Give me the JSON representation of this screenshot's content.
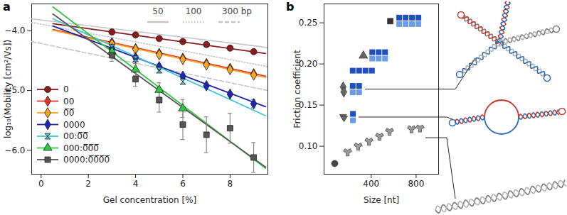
{
  "chart_data": [
    {
      "type": "scatter",
      "title": "a",
      "xlabel": "Gel concentration [%]",
      "ylabel": "log₁₀(Mobility [cm²/Vs])",
      "xlim": [
        -0.4,
        9.6
      ],
      "xticks": [
        0,
        2,
        4,
        6,
        8
      ],
      "ylim": [
        -6.4,
        -3.55
      ],
      "yticks": [
        {
          "value": -4,
          "label": "−4.0"
        },
        {
          "value": -5,
          "label": "−5.0"
        },
        {
          "value": -6,
          "label": "−6.0"
        }
      ],
      "legend": "lower left",
      "series": [
        {
          "name": "0",
          "color": "#8b1a1a",
          "marker": "circle",
          "x": [
            3,
            4,
            5,
            6,
            7,
            8,
            9
          ],
          "values": [
            -4.02,
            -4.07,
            -4.13,
            -4.18,
            -4.23,
            -4.29,
            -4.35
          ],
          "errors": [
            null,
            null,
            null,
            null,
            null,
            null,
            null
          ],
          "fit": {
            "x": [
              0.5,
              9.5
            ],
            "values": [
              -3.88,
              -4.38
            ]
          }
        },
        {
          "name": "00",
          "color": "#e8302a",
          "marker": "diamond",
          "x": [
            3,
            4,
            5,
            6,
            7,
            8,
            9
          ],
          "values": [
            -4.2,
            -4.3,
            -4.38,
            -4.46,
            -4.55,
            -4.63,
            -4.72
          ],
          "errors": [
            null,
            null,
            null,
            null,
            null,
            null,
            null
          ],
          "fit": {
            "x": [
              0.5,
              9.5
            ],
            "values": [
              -3.98,
              -4.76
            ]
          }
        },
        {
          "name": "0̅0̅",
          "color": "#f5a623",
          "marker": "diamond",
          "x": [
            3,
            4,
            5,
            6,
            7,
            8,
            9
          ],
          "values": [
            -4.22,
            -4.31,
            -4.4,
            -4.48,
            -4.57,
            -4.65,
            -4.74
          ],
          "errors": [
            null,
            null,
            null,
            null,
            null,
            null,
            null
          ],
          "fit": {
            "x": [
              0.5,
              9.5
            ],
            "values": [
              -3.99,
              -4.78
            ]
          }
        },
        {
          "name": "0000",
          "color": "#1f24b4",
          "marker": "diamond",
          "x": [
            3,
            4,
            5,
            6,
            7,
            8,
            9
          ],
          "values": [
            -4.3,
            -4.45,
            -4.6,
            -4.76,
            -4.92,
            -5.06,
            -5.22
          ],
          "errors": [
            null,
            null,
            null,
            null,
            null,
            null,
            0.07
          ],
          "fit": {
            "x": [
              0.5,
              9.5
            ],
            "values": [
              -3.92,
              -5.27
            ]
          }
        },
        {
          "name": "00:0̅0̅",
          "color": "#3ec6d6",
          "marker": "hourglass",
          "x": [
            3,
            4,
            5,
            6
          ],
          "values": [
            -4.28,
            -4.47,
            -4.66,
            -4.85
          ],
          "errors": [
            null,
            null,
            null,
            null
          ],
          "fit": {
            "x": [
              0.5,
              9.5
            ],
            "values": [
              -3.8,
              -5.42
            ]
          }
        },
        {
          "name": "000:0̅0̅0̅",
          "color": "#2ec940",
          "marker": "triangle",
          "x": [
            3,
            4,
            5,
            6
          ],
          "values": [
            -4.35,
            -4.65,
            -4.99,
            -5.3
          ],
          "errors": [
            0.08,
            0.1,
            0.12,
            0.15
          ],
          "fit": {
            "x": [
              0.5,
              9.5
            ],
            "values": [
              -3.6,
              -6.3
            ]
          }
        },
        {
          "name": "0000:0̅0̅0̅0̅",
          "color": "#555555",
          "marker": "square",
          "x": [
            3,
            4,
            5,
            6,
            7,
            8,
            9
          ],
          "values": [
            -4.41,
            -4.81,
            -5.16,
            -5.57,
            -5.74,
            -5.63,
            -6.12
          ],
          "errors": [
            0.1,
            0.12,
            0.2,
            0.25,
            0.3,
            0.25,
            0.25
          ],
          "fit": {
            "x": [
              0.5,
              9.5
            ],
            "values": [
              -3.72,
              -6.28
            ]
          }
        }
      ],
      "reference_lines": [
        {
          "name": "50",
          "color": "#c4c4c4",
          "line_style": "solid",
          "x": [
            -0.4,
            9.6
          ],
          "values": [
            -3.8,
            -4.28
          ]
        },
        {
          "name": "100",
          "color": "#c4c4c4",
          "line_style": "dotted",
          "x": [
            -0.4,
            9.6
          ],
          "values": [
            -3.86,
            -4.6
          ]
        },
        {
          "name": "300 bp",
          "color": "#c4c4c4",
          "line_style": "dashed",
          "x": [
            -0.4,
            9.6
          ],
          "values": [
            -4.18,
            -5.0
          ]
        }
      ]
    },
    {
      "type": "scatter",
      "title": "b",
      "xlabel": "Size [nt]",
      "ylabel": "Friction coefficient",
      "xlim": [
        -20,
        1000
      ],
      "xticks": [
        400,
        800
      ],
      "ylim": [
        0.066,
        0.273
      ],
      "yticks": [
        {
          "value": 0.1,
          "label": "0.10"
        },
        {
          "value": 0.15,
          "label": "0.15"
        },
        {
          "value": 0.2,
          "label": "0.20"
        },
        {
          "value": 0.25,
          "label": "0.25"
        }
      ],
      "series": [
        {
          "color": "#444444",
          "marker": "circle",
          "x": [
            75
          ],
          "values": [
            0.079
          ]
        },
        {
          "color": "#9a9a9a",
          "marker": "wye",
          "x": [
            190,
            284,
            380,
            474,
            563,
            759,
            835
          ],
          "values": [
            0.093,
            0.1,
            0.106,
            0.112,
            0.118,
            0.121,
            0.122
          ]
        },
        {
          "color": "#666666",
          "marker": "triangle-down",
          "x": [
            150,
            158
          ],
          "values": [
            0.136,
            0.134
          ]
        },
        {
          "color": "#666666",
          "marker": "diamond",
          "x": [
            150,
            156
          ],
          "values": [
            0.172,
            0.166
          ]
        },
        {
          "color": "#666666",
          "marker": "triangle",
          "x": [
            330
          ],
          "values": [
            0.21
          ]
        },
        {
          "color": "#333333",
          "marker": "square",
          "x": [
            570
          ],
          "values": [
            0.252
          ]
        }
      ]
    }
  ]
}
